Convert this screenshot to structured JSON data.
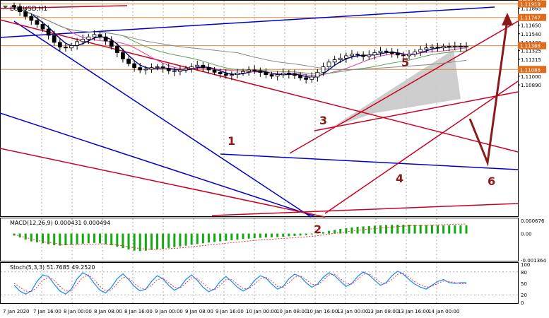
{
  "chart_data": {
    "type": "candlestick",
    "symbol_label": "EURUSD,H1",
    "price_axis": {
      "min": 1.0922,
      "max": 1.1196,
      "ticks": [
        "1.11975",
        "1.11865",
        "1.11760",
        "1.11650",
        "1.11540",
        "1.11430",
        "1.11325",
        "1.11215",
        "1.11105",
        "1.11000",
        "1.10890"
      ],
      "ticks_values": [
        1.11975,
        1.11865,
        1.1176,
        1.1165,
        1.1154,
        1.1143,
        1.11325,
        1.11215,
        1.11105,
        1.11,
        1.1089
      ],
      "highlighted_labels": [
        {
          "text": "1.11919",
          "value": 1.11919
        },
        {
          "text": "1.11747",
          "value": 1.11747
        },
        {
          "text": "1.11388",
          "value": 1.11388
        },
        {
          "text": "1.11086",
          "value": 1.11086
        }
      ]
    },
    "horizontal_levels": [
      1.11919,
      1.11747,
      1.11388,
      1.11086
    ],
    "time_axis_labels": [
      "7 Jan 2020",
      "7 Jan 16:00",
      "8 Jan 00:00",
      "8 Jan 08:00",
      "8 Jan 16:00",
      "9 Jan 00:00",
      "9 Jan 08:00",
      "9 Jan 16:00",
      "10 Jan 00:00",
      "10 Jan 08:00",
      "10 Jan 16:00",
      "13 Jan 00:00",
      "13 Jan 08:00",
      "13 Jan 16:00",
      "14 Jan 00:00"
    ],
    "annotations": [
      "1",
      "2",
      "3",
      "4",
      "5",
      "6"
    ],
    "close_series": [
      1.1188,
      1.1182,
      1.1176,
      1.1171,
      1.1166,
      1.116,
      1.1152,
      1.1143,
      1.1137,
      1.1136,
      1.1139,
      1.1144,
      1.1147,
      1.115,
      1.1153,
      1.115,
      1.1145,
      1.1138,
      1.113,
      1.1122,
      1.1116,
      1.1111,
      1.1108,
      1.1109,
      1.1111,
      1.1112,
      1.111,
      1.1107,
      1.1106,
      1.1108,
      1.111,
      1.1112,
      1.1114,
      1.1111,
      1.1108,
      1.1105,
      1.1103,
      1.1101,
      1.1102,
      1.1104,
      1.1106,
      1.1108,
      1.1107,
      1.1105,
      1.1102,
      1.11,
      1.1102,
      1.1104,
      1.1103,
      1.1101,
      1.1098,
      1.1096,
      1.1099,
      1.1105,
      1.1112,
      1.1118,
      1.1121,
      1.1123,
      1.1126,
      1.1128,
      1.1127,
      1.1125,
      1.1127,
      1.113,
      1.1132,
      1.1131,
      1.1129,
      1.1127,
      1.1126,
      1.1128,
      1.1131,
      1.1134,
      1.1136,
      1.1137,
      1.1136,
      1.1138,
      1.1137,
      1.1138,
      1.1137,
      1.1138
    ],
    "macd": {
      "label": "MACD(12,26,9) 0.000431 0.000494",
      "axis_labels": [
        "0.000676",
        "0.00",
        "-0.001364"
      ],
      "max": 0.000676,
      "min": -0.001364,
      "histogram": [
        -0.0001,
        -0.0002,
        -0.0003,
        -0.0004,
        -0.00045,
        -0.0005,
        -0.00055,
        -0.0006,
        -0.00062,
        -0.0006,
        -0.00058,
        -0.00055,
        -0.00052,
        -0.0005,
        -0.00048,
        -0.0005,
        -0.00055,
        -0.0006,
        -0.00068,
        -0.00075,
        -0.00082,
        -0.00088,
        -0.0009,
        -0.00088,
        -0.00085,
        -0.00082,
        -0.00078,
        -0.00074,
        -0.0007,
        -0.00066,
        -0.00062,
        -0.00058,
        -0.00054,
        -0.0005,
        -0.00046,
        -0.00043,
        -0.0004,
        -0.00037,
        -0.00034,
        -0.00031,
        -0.00028,
        -0.00026,
        -0.00024,
        -0.00022,
        -0.0002,
        -0.00019,
        -0.00018,
        -0.00016,
        -0.00014,
        -0.00012,
        -0.0001,
        -8e-05,
        -4e-05,
        2e-05,
        8e-05,
        0.00014,
        0.00019,
        0.00024,
        0.00028,
        0.00032,
        0.00035,
        0.00037,
        0.00039,
        0.00041,
        0.00043,
        0.00044,
        0.00045,
        0.00046,
        0.00046,
        0.00046,
        0.00045,
        0.00045,
        0.00044,
        0.00044,
        0.00043,
        0.00043,
        0.00043,
        0.00043,
        0.00043,
        0.00043
      ],
      "signal": [
        -5e-05,
        -0.00012,
        -0.0002,
        -0.00028,
        -0.00035,
        -0.00041,
        -0.00046,
        -0.0005,
        -0.00054,
        -0.00056,
        -0.00057,
        -0.00057,
        -0.00056,
        -0.00055,
        -0.00054,
        -0.00053,
        -0.00054,
        -0.00056,
        -0.00059,
        -0.00063,
        -0.00068,
        -0.00073,
        -0.00077,
        -0.00079,
        -0.0008,
        -0.0008,
        -0.00079,
        -0.00078,
        -0.00076,
        -0.00074,
        -0.00071,
        -0.00068,
        -0.00065,
        -0.00062,
        -0.00059,
        -0.00056,
        -0.00053,
        -0.0005,
        -0.00047,
        -0.00044,
        -0.00041,
        -0.00038,
        -0.00035,
        -0.00033,
        -0.00031,
        -0.00029,
        -0.00027,
        -0.00025,
        -0.00023,
        -0.00021,
        -0.00019,
        -0.00017,
        -0.00014,
        -0.00011,
        -7e-05,
        -3e-05,
        1e-05,
        5e-05,
        9e-05,
        0.00013,
        0.00017,
        0.0002,
        0.00023,
        0.00026,
        0.00029,
        0.00032,
        0.00034,
        0.00036,
        0.00038,
        0.0004,
        0.00041,
        0.00042,
        0.00043,
        0.00044,
        0.00045,
        0.00046,
        0.00047,
        0.00048,
        0.00049,
        0.000494
      ]
    },
    "stoch": {
      "label": "Stoch(5,3,3) 51.7685 49.2520",
      "axis_labels": [
        "100",
        "80",
        "50",
        "20",
        "0"
      ],
      "main": [
        45,
        30,
        22,
        30,
        55,
        72,
        68,
        48,
        30,
        22,
        35,
        62,
        78,
        70,
        50,
        32,
        25,
        40,
        62,
        75,
        60,
        42,
        30,
        35,
        55,
        70,
        62,
        45,
        32,
        40,
        60,
        72,
        58,
        40,
        28,
        35,
        55,
        68,
        55,
        40,
        30,
        38,
        58,
        70,
        64,
        48,
        35,
        42,
        62,
        74,
        68,
        52,
        40,
        48,
        66,
        78,
        70,
        55,
        42,
        50,
        68,
        80,
        72,
        58,
        45,
        52,
        70,
        82,
        74,
        60,
        48,
        40,
        35,
        45,
        55,
        60,
        52,
        50,
        51.7685,
        51.7685
      ],
      "signal": [
        50,
        40,
        30,
        28,
        40,
        58,
        66,
        58,
        42,
        30,
        30,
        48,
        66,
        72,
        60,
        42,
        30,
        33,
        50,
        66,
        64,
        50,
        38,
        34,
        45,
        60,
        63,
        52,
        40,
        38,
        50,
        65,
        63,
        50,
        36,
        33,
        45,
        60,
        60,
        48,
        36,
        36,
        48,
        62,
        66,
        56,
        42,
        40,
        52,
        66,
        70,
        60,
        48,
        46,
        58,
        72,
        74,
        62,
        50,
        48,
        60,
        74,
        75,
        64,
        52,
        50,
        60,
        74,
        76,
        66,
        54,
        46,
        40,
        42,
        50,
        56,
        55,
        52,
        49.252,
        49.252
      ]
    },
    "colors": {
      "candle_up": "#000000",
      "candle_down": "#000000",
      "blue_lines": "#0000cc",
      "red_lines": "#cc0022",
      "level_lines": "#e08a3a",
      "wedge_fill": "#c8c8c8",
      "macd_hist": "#11aa11",
      "macd_signal": "#ee3333",
      "stoch_main": "#1e90ff",
      "stoch_signal": "#ff3333",
      "highlight_label_bg": "#e06b1a",
      "annotation_color": "#8b1a1a"
    }
  }
}
